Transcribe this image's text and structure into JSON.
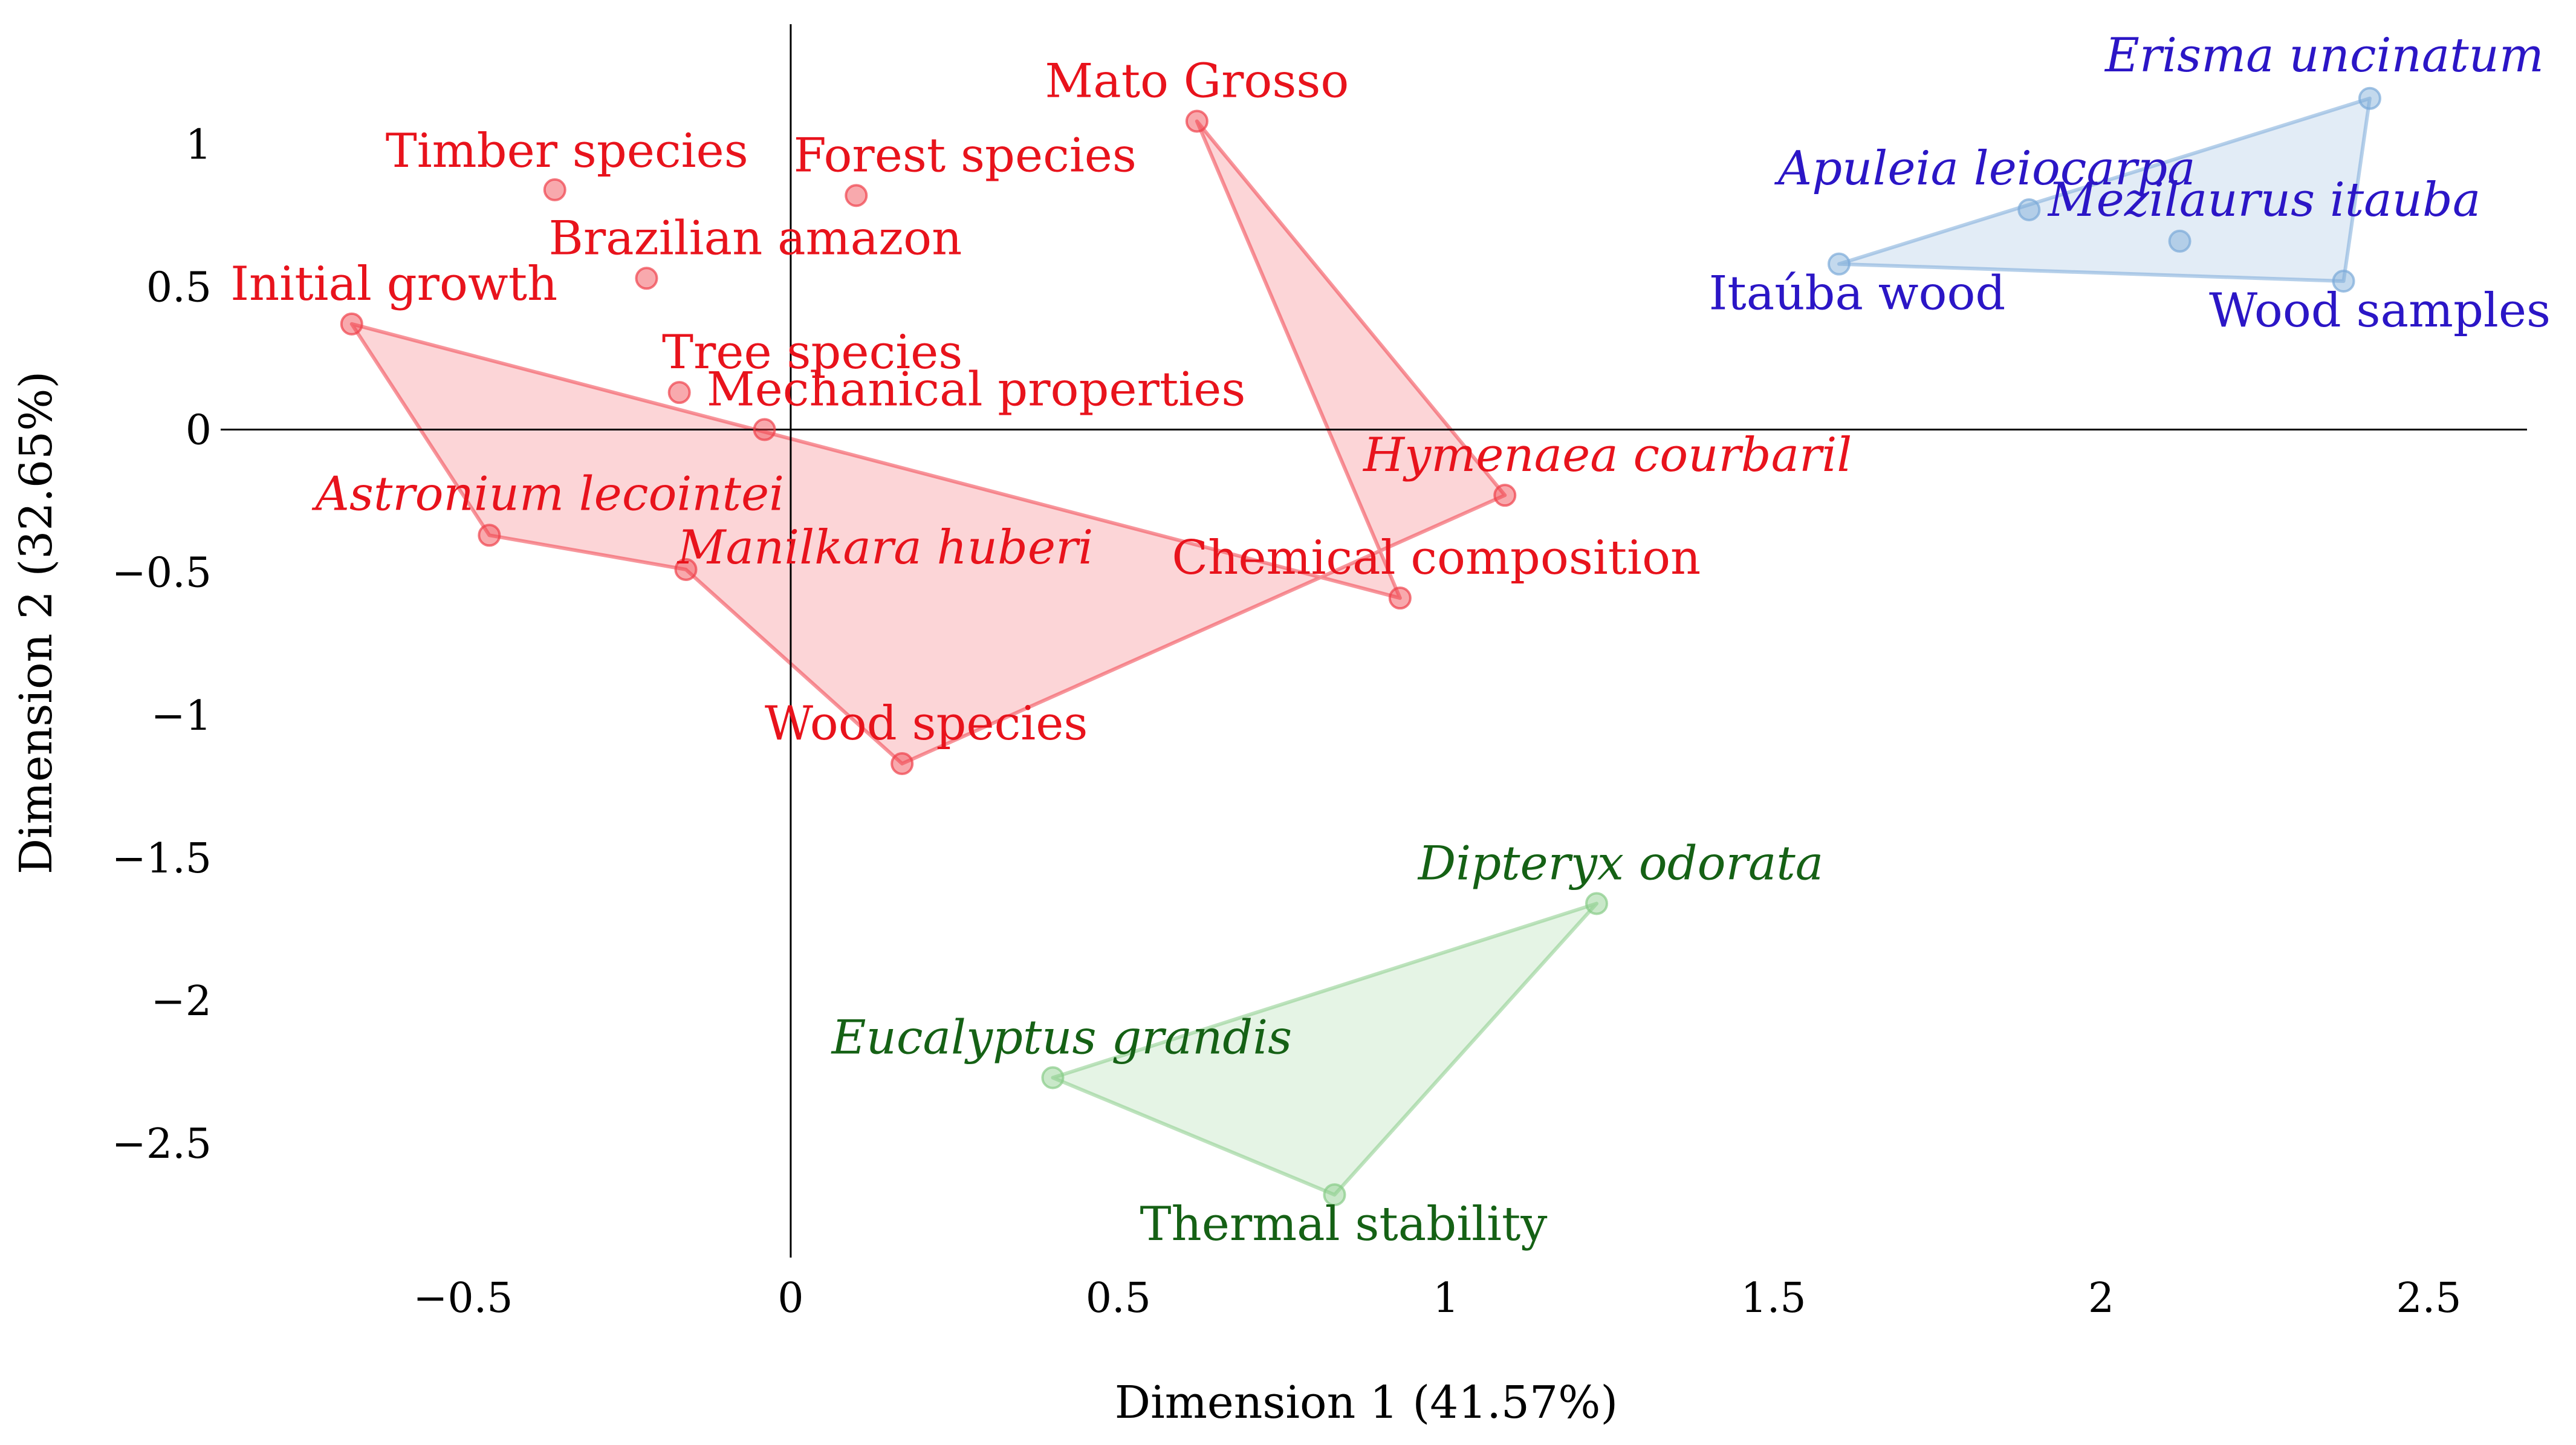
{
  "chart_data": {
    "type": "scatter",
    "xlabel": "Dimension 1 (41.57%)",
    "ylabel": "Dimension 2 (32.65%)",
    "xlim": [
      -0.87,
      2.65
    ],
    "ylim": [
      -2.9,
      1.42
    ],
    "x_ticks": [
      -0.5,
      0,
      0.5,
      1,
      1.5,
      2,
      2.5
    ],
    "x_tick_labels": [
      "−0.5",
      "0",
      "0.5",
      "1",
      "1.5",
      "2",
      "2.5"
    ],
    "y_ticks": [
      1,
      0.5,
      0,
      -0.5,
      -1,
      -1.5,
      -2,
      -2.5
    ],
    "y_tick_labels": [
      "1",
      "0.5",
      "0",
      "−0.5",
      "−1",
      "−1.5",
      "−2",
      "−2.5"
    ],
    "grid": false,
    "legend": false,
    "clusters": [
      {
        "color": "#f0404a",
        "label_color": "#e8131c",
        "hull_order": [
          10,
          2,
          9,
          11,
          7,
          3,
          1
        ],
        "points": [
          {
            "label": "Timber species",
            "x": -0.36,
            "y": 0.84,
            "italic": false
          },
          {
            "label": "Initial growth",
            "x": -0.67,
            "y": 0.37,
            "italic": false
          },
          {
            "label": "Mato Grosso",
            "x": 0.62,
            "y": 1.08,
            "italic": false
          },
          {
            "label": "Astronium lecointei",
            "x": -0.46,
            "y": -0.37,
            "italic": true
          },
          {
            "label": "Forest species",
            "x": 0.1,
            "y": 0.82,
            "italic": false
          },
          {
            "label": "Brazilian amazon",
            "x": -0.22,
            "y": 0.53,
            "italic": false
          },
          {
            "label": "Tree species",
            "x": -0.17,
            "y": 0.13,
            "italic": false
          },
          {
            "label": "Manilkara huberi",
            "x": -0.16,
            "y": -0.49,
            "italic": true
          },
          {
            "label": "Mechanical properties",
            "x": -0.04,
            "y": 0.0,
            "italic": false
          },
          {
            "label": "Hymenaea courbaril",
            "x": 1.09,
            "y": -0.23,
            "italic": true
          },
          {
            "label": "Chemical composition",
            "x": 0.93,
            "y": -0.59,
            "italic": false
          },
          {
            "label": "Wood species",
            "x": 0.17,
            "y": -1.17,
            "italic": false
          }
        ]
      },
      {
        "color": "#7aaad8",
        "label_color": "#2b16c6",
        "hull_order": [
          0,
          2,
          4
        ],
        "points": [
          {
            "label": "Erisma uncinatum",
            "x": 2.41,
            "y": 1.16,
            "italic": true
          },
          {
            "label": "Apuleia leiocarpa",
            "x": 1.89,
            "y": 0.77,
            "italic": true
          },
          {
            "label": "Itaúba wood",
            "x": 1.6,
            "y": 0.58,
            "italic": false
          },
          {
            "label": "Mezilaurus itauba",
            "x": 2.12,
            "y": 0.66,
            "italic": true
          },
          {
            "label": "Wood samples",
            "x": 2.37,
            "y": 0.52,
            "italic": false
          }
        ]
      },
      {
        "color": "#88cc88",
        "label_color": "#156115",
        "hull_order": [
          0,
          1,
          2
        ],
        "points": [
          {
            "label": "Dipteryx odorata",
            "x": 1.23,
            "y": -1.66,
            "italic": true
          },
          {
            "label": "Eucalyptus grandis",
            "x": 0.4,
            "y": -2.27,
            "italic": true
          },
          {
            "label": "Thermal stability",
            "x": 0.83,
            "y": -2.68,
            "italic": false
          }
        ]
      }
    ]
  }
}
